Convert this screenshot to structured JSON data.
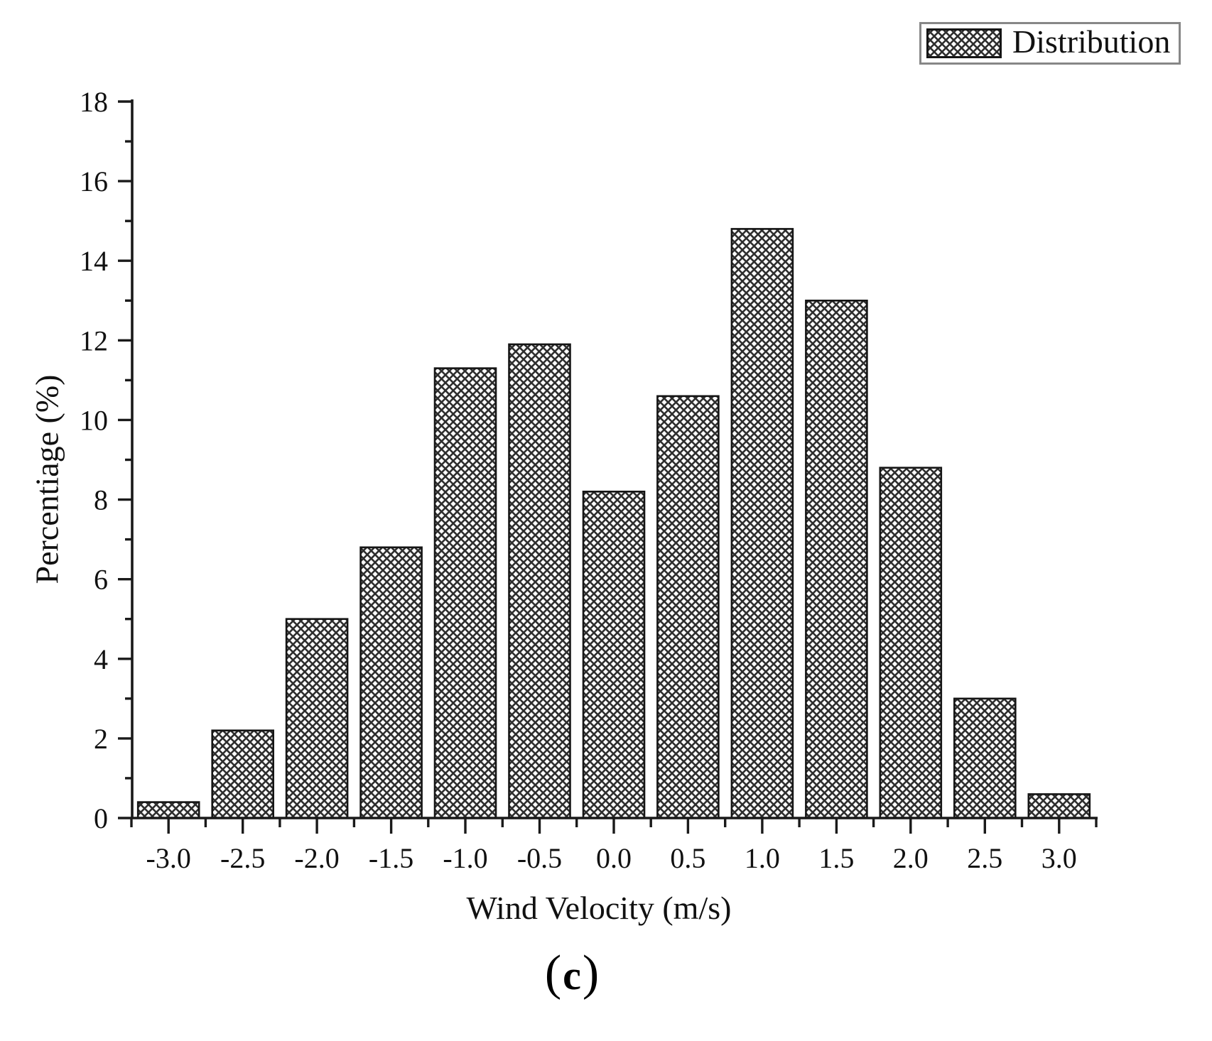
{
  "chart_data": {
    "type": "bar",
    "title": "",
    "xlabel": "Wind Velocity (m/s)",
    "ylabel": "Percentiage (%)",
    "categories": [
      "-3.0",
      "-2.5",
      "-2.0",
      "-1.5",
      "-1.0",
      "-0.5",
      "0.0",
      "0.5",
      "1.0",
      "1.5",
      "2.0",
      "2.5",
      "3.0"
    ],
    "x": [
      -3.0,
      -2.5,
      -2.0,
      -1.5,
      -1.0,
      -0.5,
      0.0,
      0.5,
      1.0,
      1.5,
      2.0,
      2.5,
      3.0
    ],
    "values": [
      0.4,
      2.2,
      5.0,
      6.8,
      11.3,
      11.9,
      8.2,
      10.6,
      14.8,
      13.0,
      8.8,
      3.0,
      0.6
    ],
    "series": [
      {
        "name": "Distribution",
        "values": [
          0.4,
          2.2,
          5.0,
          6.8,
          11.3,
          11.9,
          8.2,
          10.6,
          14.8,
          13.0,
          8.8,
          3.0,
          0.6
        ]
      }
    ],
    "xlim": [
      -3.245,
      3.25
    ],
    "ylim": [
      0,
      18
    ],
    "x_major_tick_step": 0.5,
    "x_minor_tick_step": 0.25,
    "y_major_tick_step": 2,
    "y_minor_tick_step": 1,
    "y_tick_labels": [
      "0",
      "2",
      "4",
      "6",
      "8",
      "10",
      "12",
      "14",
      "16",
      "18"
    ],
    "grid": false,
    "legend_position": "top-right",
    "bar_fill": "crosshatch",
    "caption": "(c)"
  },
  "legend": {
    "label": "Distribution"
  },
  "titles": {
    "xlabel": "Wind Velocity (m/s)",
    "ylabel": "Percentiage (%)"
  },
  "caption": {
    "open": "(",
    "letter": "c",
    "close": ")"
  },
  "colors": {
    "background": "#ffffff",
    "axis": "#1a1a1a",
    "text": "#111111",
    "bar_border": "#151515",
    "hatch": "#2e2e2e",
    "legend_border": "#878787"
  }
}
